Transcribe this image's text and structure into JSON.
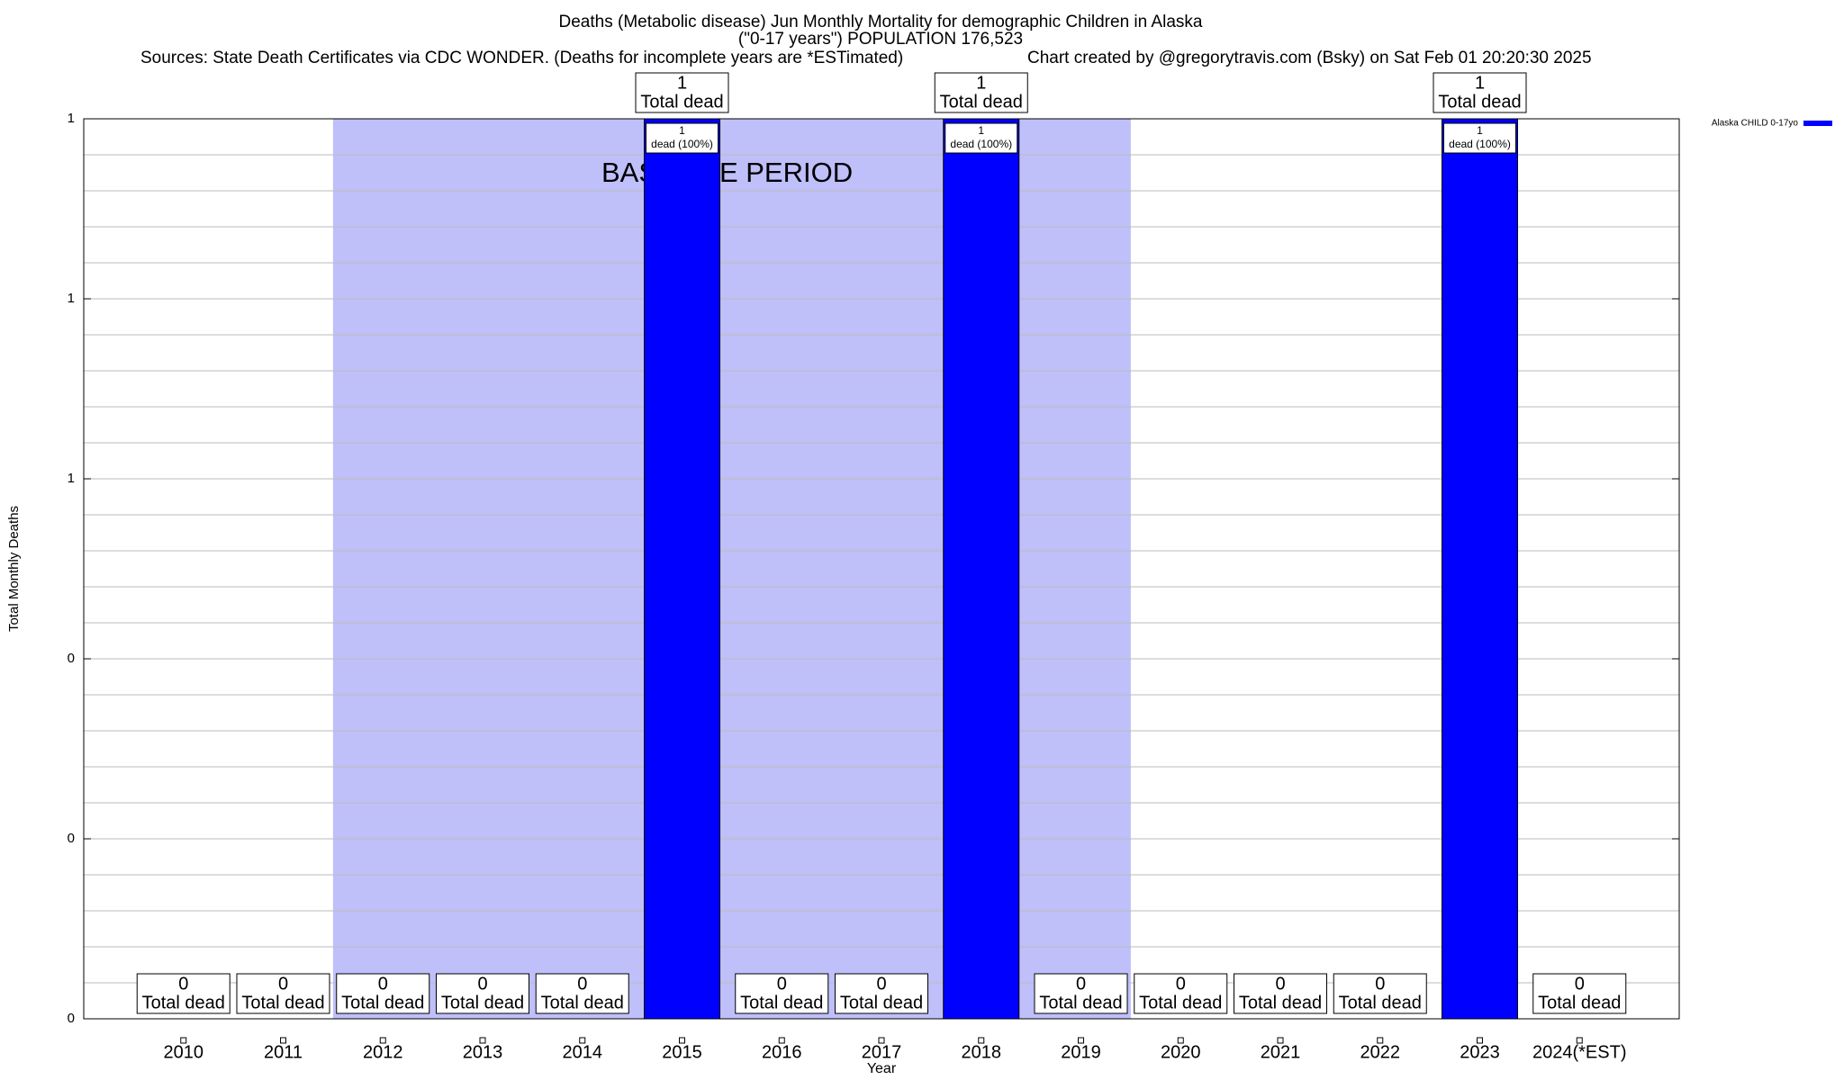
{
  "chart_data": {
    "type": "bar",
    "title": "Deaths (Metabolic disease) Jun Monthly Mortality for demographic Children in Alaska",
    "subtitle": "(\"0-17 years\") POPULATION 176,523",
    "sources": "Sources: State Death Certificates via CDC WONDER. (Deaths for incomplete years are *ESTimated)",
    "credit": "Chart created by @gregorytravis.com (Bsky) on Sat Feb 01 20:20:30 2025",
    "x_label": "Year",
    "y_label": "Total Monthly Deaths",
    "categories": [
      "2010",
      "2011",
      "2012",
      "2013",
      "2014",
      "2015",
      "2016",
      "2017",
      "2018",
      "2019",
      "2020",
      "2021",
      "2022",
      "2023",
      "2024(*EST)"
    ],
    "series": [
      {
        "name": "Alaska CHILD 0-17yo",
        "color": "#0000ff",
        "values": [
          0,
          0,
          0,
          0,
          0,
          1,
          0,
          0,
          1,
          0,
          0,
          0,
          0,
          1,
          0
        ]
      }
    ],
    "total_label": "Total dead",
    "share_labels": [
      null,
      null,
      null,
      null,
      null,
      "dead (100%)",
      null,
      null,
      "dead (100%)",
      null,
      null,
      null,
      null,
      "dead (100%)",
      null
    ],
    "baseline": {
      "label": "BASELINE PERIOD",
      "start": "2012",
      "end": "2019",
      "color": "#bfbffa"
    },
    "ylim": [
      0,
      1
    ],
    "yticks": [
      {
        "value": 0,
        "label": "0"
      },
      {
        "value": 0.2,
        "label": "0"
      },
      {
        "value": 0.4,
        "label": "0"
      },
      {
        "value": 0.6,
        "label": "1"
      },
      {
        "value": 0.8,
        "label": "1"
      },
      {
        "value": 1,
        "label": "1"
      }
    ],
    "grid": true,
    "legend": "top-right"
  }
}
